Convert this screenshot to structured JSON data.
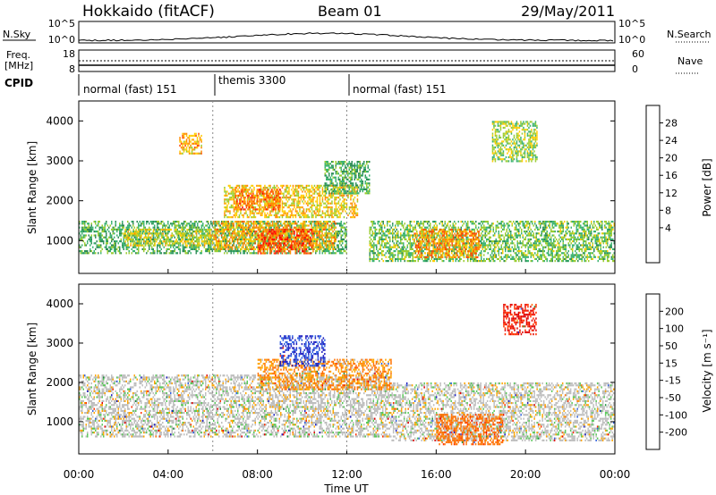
{
  "header": {
    "station": "Hokkaido (fitACF)",
    "beam": "Beam 01",
    "date": "29/May/2011"
  },
  "top_panels": {
    "nsky_label": "N.Sky",
    "nsearch_label": "N.Search",
    "freq_label_line1": "Freq.",
    "freq_label_line2": "[MHz]",
    "nave_label": "Nave",
    "cpid_label": "CPID",
    "nsky_ticks": [
      "10^5",
      "10^0"
    ],
    "nsearch_ticks": [
      "10^5",
      "10^0"
    ],
    "freq_ticks": [
      "18",
      "8"
    ],
    "nave_ticks": [
      "60",
      "0"
    ],
    "cpid_segments": [
      {
        "label": "normal (fast) 151",
        "start_hour": 0,
        "end_hour": 6
      },
      {
        "label": "themis 3300",
        "start_hour": 6,
        "end_hour": 12
      },
      {
        "label": "normal (fast) 151",
        "start_hour": 12,
        "end_hour": 24
      }
    ]
  },
  "axes": {
    "ylabel": "Slant Range [km]",
    "xlabel": "Time UT",
    "x_ticks": [
      "00:00",
      "04:00",
      "08:00",
      "12:00",
      "16:00",
      "20:00",
      "00:00"
    ],
    "x_tick_hours": [
      0,
      4,
      8,
      12,
      16,
      20,
      24
    ],
    "y_ticks": [
      1000,
      2000,
      3000,
      4000
    ],
    "ylim": [
      180,
      4500
    ],
    "xlim_hours": [
      0,
      24
    ]
  },
  "colorbars": {
    "power": {
      "label": "Power [dB]",
      "ticks": [
        "28",
        "24",
        "20",
        "16",
        "12",
        "8",
        "4"
      ],
      "colors": [
        "#ff0000",
        "#ff4a00",
        "#ff8c00",
        "#ffcc00",
        "#9acd32",
        "#3cb371",
        "#2e8b57",
        "#1e3cff",
        "#0000ff"
      ]
    },
    "velocity": {
      "label": "Velocity [m s⁻¹]",
      "ticks": [
        "200",
        "100",
        "50",
        "15",
        "-15",
        "-50",
        "-100",
        "-200"
      ],
      "colors": [
        "#2020c0",
        "#3060e0",
        "#1f8f3f",
        "#5ac85a",
        "#bebebe",
        "#ffa500",
        "#ff7000",
        "#ff3000",
        "#e00000"
      ]
    }
  },
  "chart_data": {
    "type": "heatmap",
    "x_unit": "hours UT",
    "y_unit": "km",
    "power_regions": [
      {
        "x0": 0,
        "x1": 12,
        "y0": 700,
        "y1": 1500,
        "power_db": 12
      },
      {
        "x0": 2,
        "x1": 6,
        "y0": 900,
        "y1": 1300,
        "power_db": 18
      },
      {
        "x0": 6,
        "x1": 11.5,
        "y0": 800,
        "y1": 1500,
        "power_db": 22
      },
      {
        "x0": 8,
        "x1": 10.5,
        "y0": 700,
        "y1": 1300,
        "power_db": 28
      },
      {
        "x0": 6.5,
        "x1": 12.5,
        "y0": 1600,
        "y1": 2400,
        "power_db": 20
      },
      {
        "x0": 7,
        "x1": 9,
        "y0": 1800,
        "y1": 2300,
        "power_db": 26
      },
      {
        "x0": 13,
        "x1": 24,
        "y0": 500,
        "y1": 1500,
        "power_db": 14
      },
      {
        "x0": 15,
        "x1": 18,
        "y0": 600,
        "y1": 1300,
        "power_db": 24
      },
      {
        "x0": 11,
        "x1": 13,
        "y0": 2200,
        "y1": 3000,
        "power_db": 12
      },
      {
        "x0": 4.5,
        "x1": 5.5,
        "y0": 3200,
        "y1": 3700,
        "power_db": 22
      },
      {
        "x0": 18.5,
        "x1": 20.5,
        "y0": 3000,
        "y1": 4000,
        "power_db": 16
      }
    ],
    "velocity_regions": [
      {
        "x0": 0,
        "x1": 14,
        "y0": 600,
        "y1": 2200,
        "velocity": 0
      },
      {
        "x0": 14,
        "x1": 24,
        "y0": 500,
        "y1": 2000,
        "velocity": 0
      },
      {
        "x0": 8,
        "x1": 14,
        "y0": 1800,
        "y1": 2600,
        "velocity": -30
      },
      {
        "x0": 16,
        "x1": 19,
        "y0": 400,
        "y1": 1200,
        "velocity": -60
      },
      {
        "x0": 19,
        "x1": 20.5,
        "y0": 3200,
        "y1": 4000,
        "velocity": -150
      },
      {
        "x0": 9,
        "x1": 11,
        "y0": 2400,
        "y1": 3200,
        "velocity": 150
      }
    ]
  }
}
